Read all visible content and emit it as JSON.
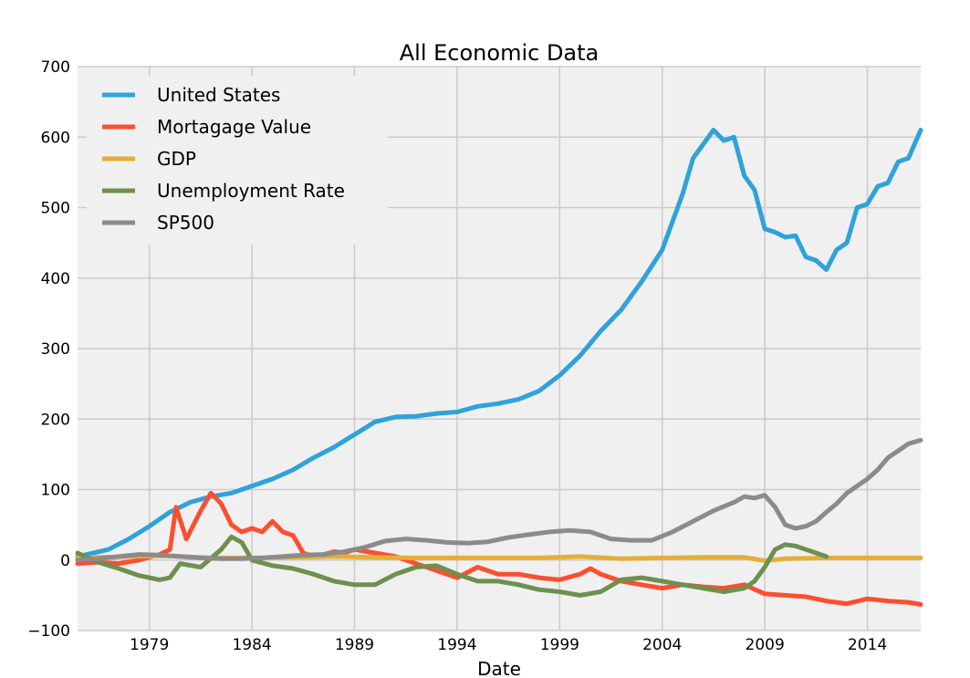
{
  "chart_data": {
    "type": "line",
    "title": "All Economic Data",
    "xlabel": "Date",
    "ylabel": "",
    "xlim": [
      1975.5,
      2016.6
    ],
    "ylim": [
      -100,
      700
    ],
    "xticks": [
      1979,
      1984,
      1989,
      1994,
      1999,
      2004,
      2009,
      2014
    ],
    "yticks": [
      -100,
      0,
      100,
      200,
      300,
      400,
      500,
      600,
      700
    ],
    "ytick_labels": [
      "−100",
      "0",
      "100",
      "200",
      "300",
      "400",
      "500",
      "600",
      "700"
    ],
    "grid": true,
    "legend_position": "top-left",
    "series": [
      {
        "name": "United States",
        "color": "#30a2da",
        "x": [
          1975.5,
          1977,
          1978,
          1979,
          1980,
          1981,
          1982,
          1983,
          1984,
          1985,
          1986,
          1987,
          1988,
          1989,
          1990,
          1991,
          1992,
          1993,
          1994,
          1995,
          1996,
          1997,
          1998,
          1999,
          2000,
          2001,
          2002,
          2003,
          2004,
          2004.5,
          2005,
          2005.5,
          2006,
          2006.5,
          2007,
          2007.5,
          2008,
          2008.5,
          2009,
          2009.5,
          2010,
          2010.5,
          2011,
          2011.5,
          2012,
          2012.5,
          2013,
          2013.5,
          2014,
          2014.5,
          2015,
          2015.5,
          2016,
          2016.6
        ],
        "y": [
          5,
          15,
          30,
          48,
          68,
          82,
          90,
          95,
          105,
          115,
          128,
          145,
          160,
          178,
          196,
          203,
          204,
          208,
          210,
          218,
          222,
          228,
          240,
          262,
          290,
          325,
          355,
          395,
          440,
          480,
          520,
          570,
          590,
          610,
          595,
          600,
          545,
          525,
          470,
          465,
          458,
          460,
          430,
          425,
          412,
          440,
          450,
          500,
          505,
          530,
          535,
          565,
          570,
          610
        ]
      },
      {
        "name": "Mortagage Value",
        "color": "#fc4f30",
        "x": [
          1975.5,
          1976.5,
          1977.5,
          1978.5,
          1979.5,
          1980,
          1980.3,
          1980.8,
          1981.5,
          1982,
          1982.5,
          1983,
          1983.5,
          1984,
          1984.5,
          1985,
          1985.5,
          1986,
          1986.5,
          1987,
          1987.5,
          1988,
          1988.5,
          1989,
          1990,
          1991,
          1992,
          1993,
          1994,
          1995,
          1996,
          1997,
          1998,
          1999,
          2000,
          2000.5,
          2001,
          2002,
          2003,
          2004,
          2005,
          2006,
          2007,
          2008,
          2009,
          2010,
          2011,
          2012,
          2013,
          2014,
          2015,
          2016,
          2016.6
        ],
        "y": [
          -5,
          -3,
          -5,
          0,
          8,
          15,
          75,
          30,
          70,
          95,
          80,
          50,
          40,
          45,
          40,
          55,
          40,
          35,
          10,
          5,
          8,
          12,
          10,
          15,
          10,
          5,
          -5,
          -15,
          -25,
          -10,
          -20,
          -20,
          -25,
          -28,
          -20,
          -12,
          -20,
          -30,
          -35,
          -40,
          -35,
          -38,
          -40,
          -35,
          -48,
          -50,
          -52,
          -58,
          -62,
          -55,
          -58,
          -60,
          -63
        ]
      },
      {
        "name": "GDP",
        "color": "#e5ae38",
        "x": [
          1975.5,
          1978,
          1980,
          1982,
          1984,
          1986,
          1988,
          1990,
          1992,
          1994,
          1996,
          1998,
          2000,
          2002,
          2004,
          2006,
          2008,
          2009,
          2010,
          2012,
          2014,
          2016.6
        ],
        "y": [
          3,
          5,
          6,
          3,
          3,
          4,
          5,
          4,
          3,
          3,
          3,
          3,
          5,
          2,
          3,
          4,
          4,
          -1,
          2,
          3,
          3,
          3
        ]
      },
      {
        "name": "Unemployment Rate",
        "color": "#6d904f",
        "x": [
          1975.5,
          1976.5,
          1977.5,
          1978.5,
          1979.5,
          1980,
          1980.5,
          1981.5,
          1982.5,
          1983,
          1983.5,
          1984,
          1985,
          1986,
          1987,
          1988,
          1989,
          1990,
          1991,
          1992,
          1993,
          1994,
          1995,
          1996,
          1997,
          1998,
          1999,
          2000,
          2001,
          2002,
          2003,
          2004,
          2005,
          2006,
          2007,
          2008,
          2008.5,
          2009,
          2009.5,
          2010,
          2010.5,
          2011,
          2011.5,
          2012
        ],
        "y": [
          10,
          -3,
          -12,
          -22,
          -28,
          -25,
          -5,
          -10,
          15,
          33,
          25,
          0,
          -8,
          -12,
          -20,
          -30,
          -35,
          -35,
          -20,
          -10,
          -8,
          -20,
          -30,
          -30,
          -35,
          -42,
          -45,
          -50,
          -45,
          -28,
          -25,
          -30,
          -35,
          -40,
          -45,
          -40,
          -30,
          -10,
          15,
          22,
          20,
          15,
          10,
          5
        ]
      },
      {
        "name": "SP500",
        "color": "#8b8b8b",
        "x": [
          1975.5,
          1976.5,
          1977.5,
          1978.5,
          1979.5,
          1980.5,
          1981.5,
          1982.5,
          1983.5,
          1984.5,
          1985.5,
          1986.5,
          1987.5,
          1988.5,
          1989.5,
          1990.5,
          1991.5,
          1992.5,
          1993.5,
          1994.5,
          1995.5,
          1996.5,
          1997.5,
          1998.5,
          1999.5,
          2000.5,
          2001.5,
          2002.5,
          2003.5,
          2004.5,
          2005.5,
          2006.5,
          2007.5,
          2008,
          2008.5,
          2009,
          2009.5,
          2010,
          2010.5,
          2011,
          2011.5,
          2012,
          2012.5,
          2013,
          2013.5,
          2014,
          2014.5,
          2015,
          2015.5,
          2016,
          2016.6
        ],
        "y": [
          0,
          2,
          5,
          8,
          7,
          5,
          3,
          2,
          2,
          3,
          5,
          7,
          8,
          12,
          18,
          27,
          30,
          28,
          25,
          24,
          26,
          32,
          36,
          40,
          42,
          40,
          30,
          28,
          28,
          40,
          55,
          70,
          82,
          90,
          88,
          92,
          75,
          50,
          45,
          48,
          55,
          68,
          80,
          95,
          105,
          115,
          128,
          145,
          155,
          165,
          170
        ]
      }
    ]
  }
}
